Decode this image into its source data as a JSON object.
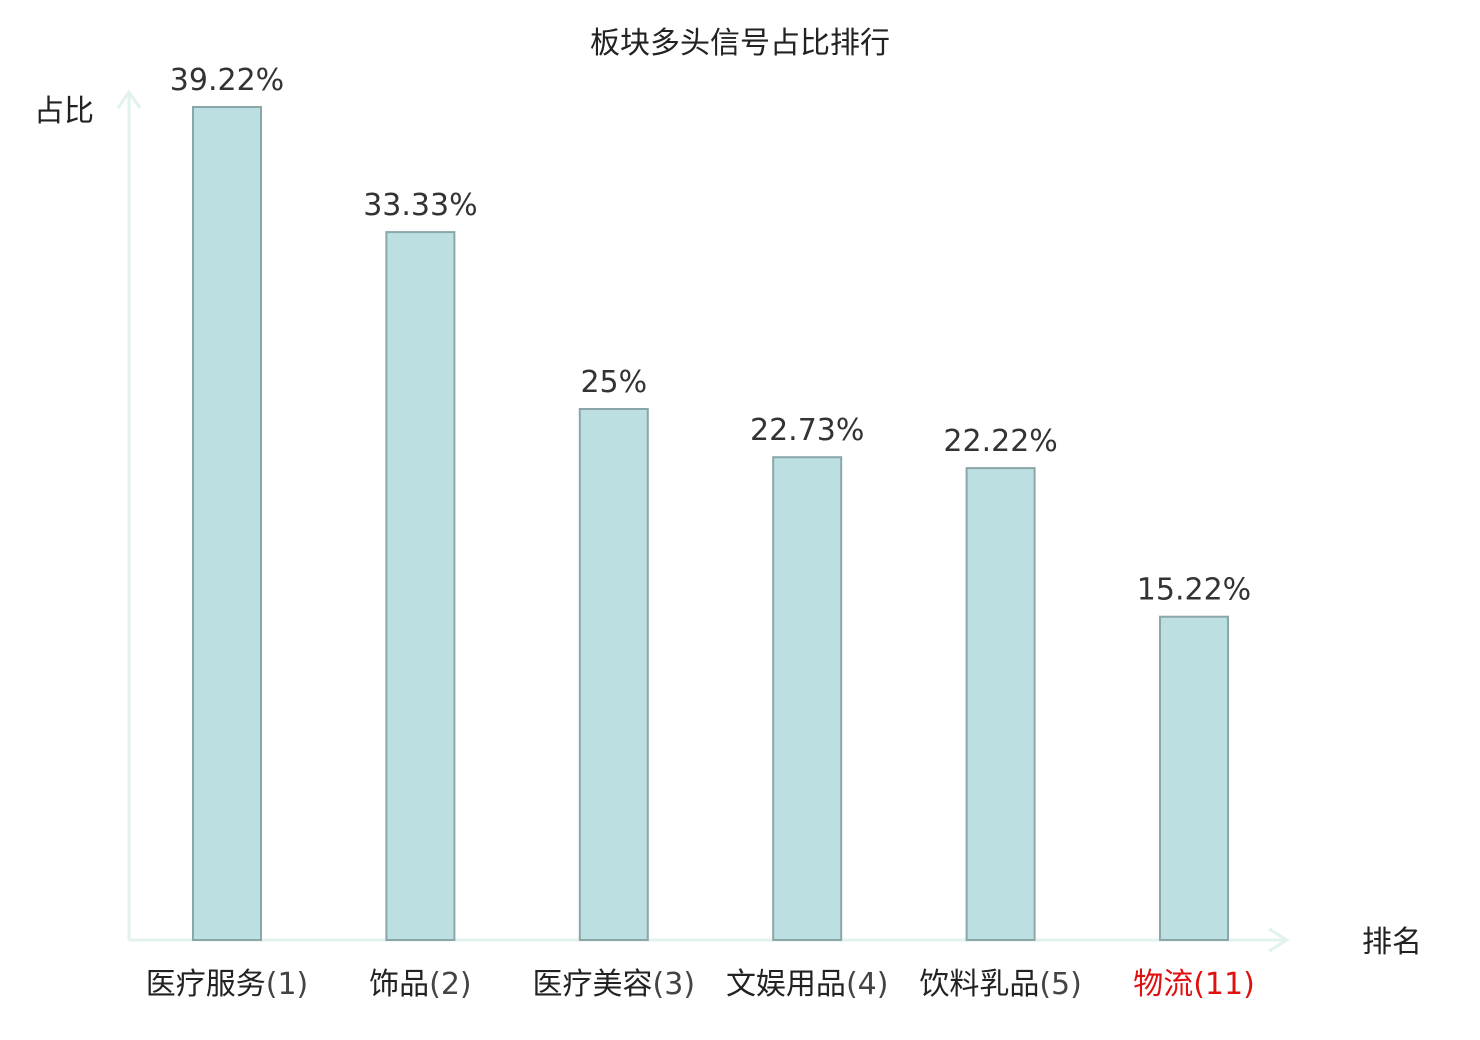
{
  "title": "板块多头信号占比排行",
  "chart_data": {
    "type": "bar",
    "title": "板块多头信号占比排行",
    "xlabel": "排名",
    "ylabel": "占比",
    "ylim": [
      0,
      40
    ],
    "grid": false,
    "value_suffix": "%",
    "categories": [
      {
        "name": "医疗服务",
        "rank": "(1)",
        "highlight": false
      },
      {
        "name": "饰品",
        "rank": "(2)",
        "highlight": false
      },
      {
        "name": "医疗美容",
        "rank": "(3)",
        "highlight": false
      },
      {
        "name": "文娱用品",
        "rank": "(4)",
        "highlight": false
      },
      {
        "name": "饮料乳品",
        "rank": "(5)",
        "highlight": false
      },
      {
        "name": "物流",
        "rank": "(11)",
        "highlight": true
      }
    ],
    "values": [
      39.22,
      33.33,
      25,
      22.73,
      22.22,
      15.22
    ],
    "value_labels": [
      "39.22%",
      "33.33%",
      "25%",
      "22.73%",
      "22.22%",
      "15.22%"
    ]
  },
  "colors": {
    "bar_fill": "#bce0e2",
    "bar_stroke": "#8aa6a8",
    "axis": "#e2f3ef",
    "highlight": "#e01010",
    "text": "#222222"
  }
}
